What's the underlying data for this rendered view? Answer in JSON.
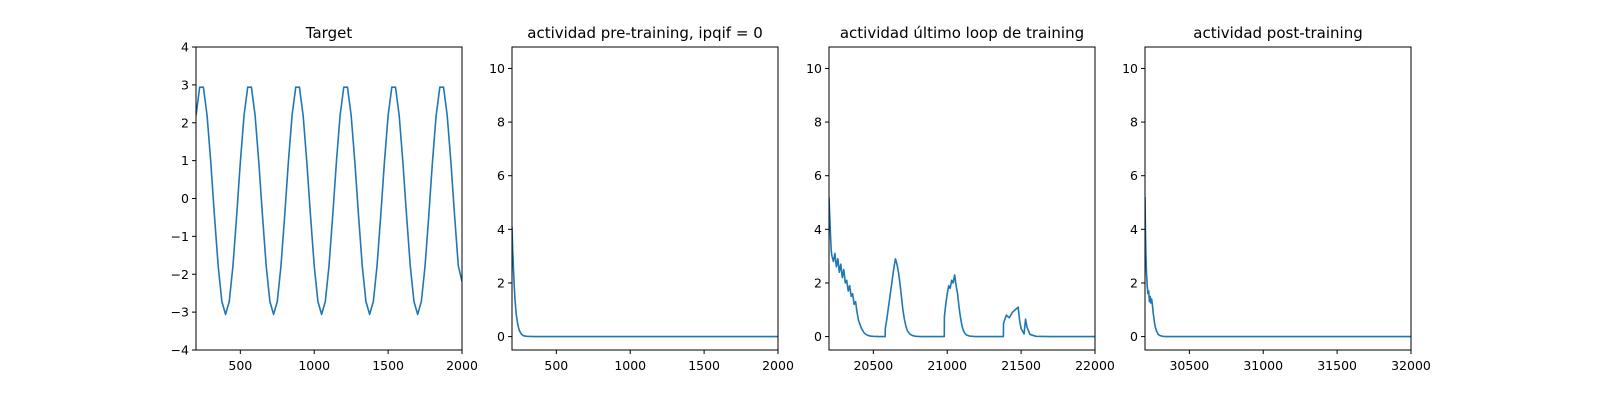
{
  "chart_data": [
    {
      "type": "line",
      "title": "Target",
      "xlim": [
        200,
        2000
      ],
      "ylim": [
        -4,
        4
      ],
      "xticks": [
        500,
        1000,
        1500,
        2000
      ],
      "yticks": [
        -4,
        -3,
        -2,
        -1,
        0,
        1,
        2,
        3,
        4
      ],
      "color": "#1f77b4",
      "series": [
        {
          "x": [
            200,
            225,
            250,
            275,
            300,
            325,
            350,
            375,
            400,
            425,
            450,
            475,
            500,
            525,
            550,
            575,
            600,
            625,
            650,
            675,
            700,
            725,
            750,
            775,
            800,
            825,
            850,
            875,
            900,
            925,
            950,
            975,
            1000,
            1025,
            1050,
            1075,
            1100,
            1125,
            1150,
            1175,
            1200,
            1225,
            1250,
            1275,
            1300,
            1325,
            1350,
            1375,
            1400,
            1425,
            1450,
            1475,
            1500,
            1525,
            1550,
            1575,
            1600,
            1625,
            1650,
            1675,
            1700,
            1725,
            1750,
            1775,
            1800,
            1825,
            1850,
            1875,
            1900,
            1925,
            1950,
            1975,
            2000
          ],
          "y": [
            2.19,
            2.94,
            2.94,
            2.19,
            0.96,
            -0.46,
            -1.78,
            -2.72,
            -3.06,
            -2.72,
            -1.78,
            -0.46,
            0.96,
            2.19,
            2.94,
            2.94,
            2.19,
            0.96,
            -0.46,
            -1.78,
            -2.72,
            -3.06,
            -2.72,
            -1.78,
            -0.46,
            0.96,
            2.19,
            2.94,
            2.94,
            2.19,
            0.96,
            -0.46,
            -1.78,
            -2.72,
            -3.06,
            -2.72,
            -1.78,
            -0.46,
            0.96,
            2.19,
            2.94,
            2.94,
            2.19,
            0.96,
            -0.46,
            -1.78,
            -2.72,
            -3.06,
            -2.72,
            -1.78,
            -0.46,
            0.96,
            2.19,
            2.94,
            2.94,
            2.19,
            0.96,
            -0.46,
            -1.78,
            -2.72,
            -3.06,
            -2.72,
            -1.78,
            -0.46,
            0.96,
            2.19,
            2.94,
            2.94,
            2.19,
            0.96,
            -0.46,
            -1.78,
            -2.19
          ]
        }
      ]
    },
    {
      "type": "line",
      "title": "actividad pre-training, ipqif = 0",
      "xlim": [
        200,
        2000
      ],
      "ylim": [
        -0.5,
        10.8
      ],
      "xticks": [
        500,
        1000,
        1500,
        2000
      ],
      "yticks": [
        0,
        2,
        4,
        6,
        8,
        10
      ],
      "color": "#1f77b4",
      "series": [
        {
          "x": [
            200,
            205,
            210,
            215,
            220,
            225,
            230,
            240,
            250,
            265,
            280,
            300,
            350,
            400,
            500,
            1000,
            1500,
            2000
          ],
          "y": [
            4.1,
            3.2,
            2.5,
            1.9,
            1.4,
            1.05,
            0.78,
            0.42,
            0.22,
            0.08,
            0.03,
            0.01,
            0,
            0,
            0,
            0,
            0,
            0
          ]
        }
      ]
    },
    {
      "type": "line",
      "title": "actividad último loop de training",
      "xlim": [
        20200,
        22000
      ],
      "ylim": [
        -0.5,
        10.8
      ],
      "xticks": [
        20500,
        21000,
        21500,
        22000
      ],
      "yticks": [
        0,
        2,
        4,
        6,
        8,
        10
      ],
      "color": "#1f77b4",
      "series": [
        {
          "x": [
            20200,
            20205,
            20210,
            20215,
            20220,
            20230,
            20240,
            20250,
            20260,
            20270,
            20280,
            20290,
            20300,
            20310,
            20320,
            20330,
            20340,
            20350,
            20360,
            20370,
            20380,
            20390,
            20400,
            20420,
            20440,
            20460,
            20480,
            20500,
            20540,
            20580,
            20581,
            20590,
            20600,
            20610,
            20620,
            20630,
            20640,
            20650,
            20660,
            20670,
            20680,
            20690,
            20700,
            20710,
            20720,
            20730,
            20750,
            20770,
            20790,
            20820,
            20860,
            20900,
            20940,
            20980,
            20981,
            20990,
            21000,
            21010,
            21020,
            21030,
            21040,
            21050,
            21060,
            21070,
            21080,
            21090,
            21100,
            21110,
            21120,
            21130,
            21150,
            21170,
            21190,
            21220,
            21260,
            21300,
            21340,
            21380,
            21381,
            21400,
            21420,
            21440,
            21460,
            21480,
            21490,
            21500,
            21510,
            21520,
            21530,
            21540,
            21560,
            21600,
            21700,
            21800,
            22000
          ],
          "y": [
            5.2,
            4.5,
            3.8,
            3.2,
            3.0,
            2.8,
            3.1,
            2.6,
            2.9,
            2.4,
            2.7,
            2.2,
            2.5,
            2.0,
            2.1,
            1.7,
            1.9,
            1.5,
            1.6,
            1.2,
            1.3,
            0.9,
            0.6,
            0.3,
            0.12,
            0.05,
            0.02,
            0.01,
            0,
            0,
            0.3,
            0.6,
            1.0,
            1.4,
            1.8,
            2.2,
            2.6,
            2.9,
            2.7,
            2.4,
            2.0,
            1.5,
            1.0,
            0.65,
            0.4,
            0.22,
            0.08,
            0.03,
            0.01,
            0,
            0,
            0,
            0,
            0,
            0.75,
            1.2,
            1.6,
            1.9,
            1.8,
            2.1,
            2.0,
            2.3,
            1.9,
            1.6,
            1.1,
            0.7,
            0.4,
            0.22,
            0.12,
            0.06,
            0.02,
            0.01,
            0,
            0,
            0,
            0,
            0,
            0,
            0.5,
            0.8,
            0.7,
            0.9,
            1.0,
            1.1,
            0.6,
            0.3,
            0.2,
            0.1,
            0.65,
            0.35,
            0.08,
            0.01,
            0,
            0,
            0
          ]
        }
      ]
    },
    {
      "type": "line",
      "title": "actividad post-training",
      "xlim": [
        30200,
        32000
      ],
      "ylim": [
        -0.5,
        10.8
      ],
      "xticks": [
        30500,
        31000,
        31500,
        32000
      ],
      "yticks": [
        0,
        2,
        4,
        6,
        8,
        10
      ],
      "color": "#1f77b4",
      "series": [
        {
          "x": [
            30200,
            30203,
            30206,
            30210,
            30215,
            30220,
            30225,
            30230,
            30235,
            30240,
            30245,
            30250,
            30255,
            30260,
            30265,
            30270,
            30280,
            30290,
            30300,
            30320,
            30340,
            30400,
            30600,
            31000,
            31500,
            32000
          ],
          "y": [
            5.2,
            4.0,
            3.1,
            2.4,
            1.9,
            1.6,
            1.7,
            1.3,
            1.5,
            1.25,
            1.4,
            1.2,
            0.9,
            0.7,
            0.5,
            0.35,
            0.18,
            0.08,
            0.04,
            0.01,
            0,
            0,
            0,
            0,
            0,
            0
          ]
        }
      ]
    }
  ]
}
